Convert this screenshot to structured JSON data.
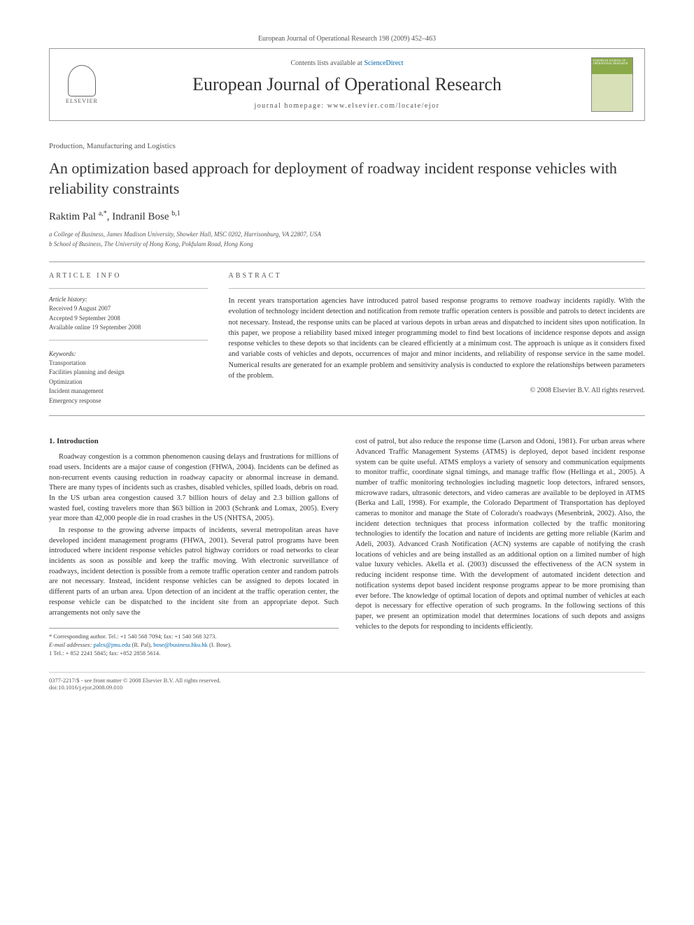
{
  "journal_ref": "European Journal of Operational Research 198 (2009) 452–463",
  "header": {
    "contents_prefix": "Contents lists available at ",
    "contents_link": "ScienceDirect",
    "journal_title": "European Journal of Operational Research",
    "homepage_label": "journal homepage: www.elsevier.com/locate/ejor",
    "elsevier": "ELSEVIER"
  },
  "section": "Production, Manufacturing and Logistics",
  "title": "An optimization based approach for deployment of roadway incident response vehicles with reliability constraints",
  "authors": "Raktim Pal a,*, Indranil Bose b,1",
  "affiliations": {
    "a": "a College of Business, James Madison University, Showker Hall, MSC 0202, Harrisonburg, VA 22807, USA",
    "b": "b School of Business, The University of Hong Kong, Pokfulam Road, Hong Kong"
  },
  "info": {
    "header": "ARTICLE INFO",
    "history_label": "Article history:",
    "received": "Received 9 August 2007",
    "accepted": "Accepted 9 September 2008",
    "online": "Available online 19 September 2008",
    "keywords_label": "Keywords:",
    "keywords": [
      "Transportation",
      "Facilities planning and design",
      "Optimization",
      "Incident management",
      "Emergency response"
    ]
  },
  "abstract": {
    "header": "ABSTRACT",
    "text": "In recent years transportation agencies have introduced patrol based response programs to remove roadway incidents rapidly. With the evolution of technology incident detection and notification from remote traffic operation centers is possible and patrols to detect incidents are not necessary. Instead, the response units can be placed at various depots in urban areas and dispatched to incident sites upon notification. In this paper, we propose a reliability based mixed integer programming model to find best locations of incidence response depots and assign response vehicles to these depots so that incidents can be cleared efficiently at a minimum cost. The approach is unique as it considers fixed and variable costs of vehicles and depots, occurrences of major and minor incidents, and reliability of response service in the same model. Numerical results are generated for an example problem and sensitivity analysis is conducted to explore the relationships between parameters of the problem.",
    "copyright": "© 2008 Elsevier B.V. All rights reserved."
  },
  "intro_heading": "1. Introduction",
  "col1": {
    "p1": "Roadway congestion is a common phenomenon causing delays and frustrations for millions of road users. Incidents are a major cause of congestion (FHWA, 2004). Incidents can be defined as non-recurrent events causing reduction in roadway capacity or abnormal increase in demand. There are many types of incidents such as crashes, disabled vehicles, spilled loads, debris on road. In the US urban area congestion caused 3.7 billion hours of delay and 2.3 billion gallons of wasted fuel, costing travelers more than $63 billion in 2003 (Schrank and Lomax, 2005). Every year more than 42,000 people die in road crashes in the US (NHTSA, 2005).",
    "p2": "In response to the growing adverse impacts of incidents, several metropolitan areas have developed incident management programs (FHWA, 2001). Several patrol programs have been introduced where incident response vehicles patrol highway corridors or road networks to clear incidents as soon as possible and keep the traffic moving. With electronic surveillance of roadways, incident detection is possible from a remote traffic operation center and random patrols are not necessary. Instead, incident response vehicles can be assigned to depots located in different parts of an urban area. Upon detection of an incident at the traffic operation center, the response vehicle can be dispatched to the incident site from an appropriate depot. Such arrangements not only save the"
  },
  "col2": {
    "p1": "cost of patrol, but also reduce the response time (Larson and Odoni, 1981). For urban areas where Advanced Traffic Management Systems (ATMS) is deployed, depot based incident response system can be quite useful. ATMS employs a variety of sensory and communication equipments to monitor traffic, coordinate signal timings, and manage traffic flow (Hellinga et al., 2005). A number of traffic monitoring technologies including magnetic loop detectors, infrared sensors, microwave radars, ultrasonic detectors, and video cameras are available to be deployed in ATMS (Berka and Lall, 1998). For example, the Colorado Department of Transportation has deployed cameras to monitor and manage the State of Colorado's roadways (Mesenbrink, 2002). Also, the incident detection techniques that process information collected by the traffic monitoring technologies to identify the location and nature of incidents are getting more reliable (Karim and Adeli, 2003). Advanced Crash Notification (ACN) systems are capable of notifying the crash locations of vehicles and are being installed as an additional option on a limited number of high value luxury vehicles. Akella et al. (2003) discussed the effectiveness of the ACN system in reducing incident response time. With the development of automated incident detection and notification systems depot based incident response programs appear to be more promising than ever before. The knowledge of optimal location of depots and optimal number of vehicles at each depot is necessary for effective operation of such programs. In the following sections of this paper, we present an optimization model that determines locations of such depots and assigns vehicles to the depots for responding to incidents efficiently."
  },
  "footnotes": {
    "corr": "* Corresponding author. Tel.: +1 540 568 7094; fax: +1 540 568 3273.",
    "email_label": "E-mail addresses:",
    "email1": "palrx@jmu.edu",
    "email1_who": " (R. Pal), ",
    "email2": "bose@business.hku.hk",
    "email2_who": " (I. Bose).",
    "note1": "1 Tel.: + 852 2241 5845; fax: +852 2858 5614."
  },
  "footer": {
    "left": "0377-2217/$ - see front matter © 2008 Elsevier B.V. All rights reserved.\ndoi:10.1016/j.ejor.2008.09.010"
  }
}
